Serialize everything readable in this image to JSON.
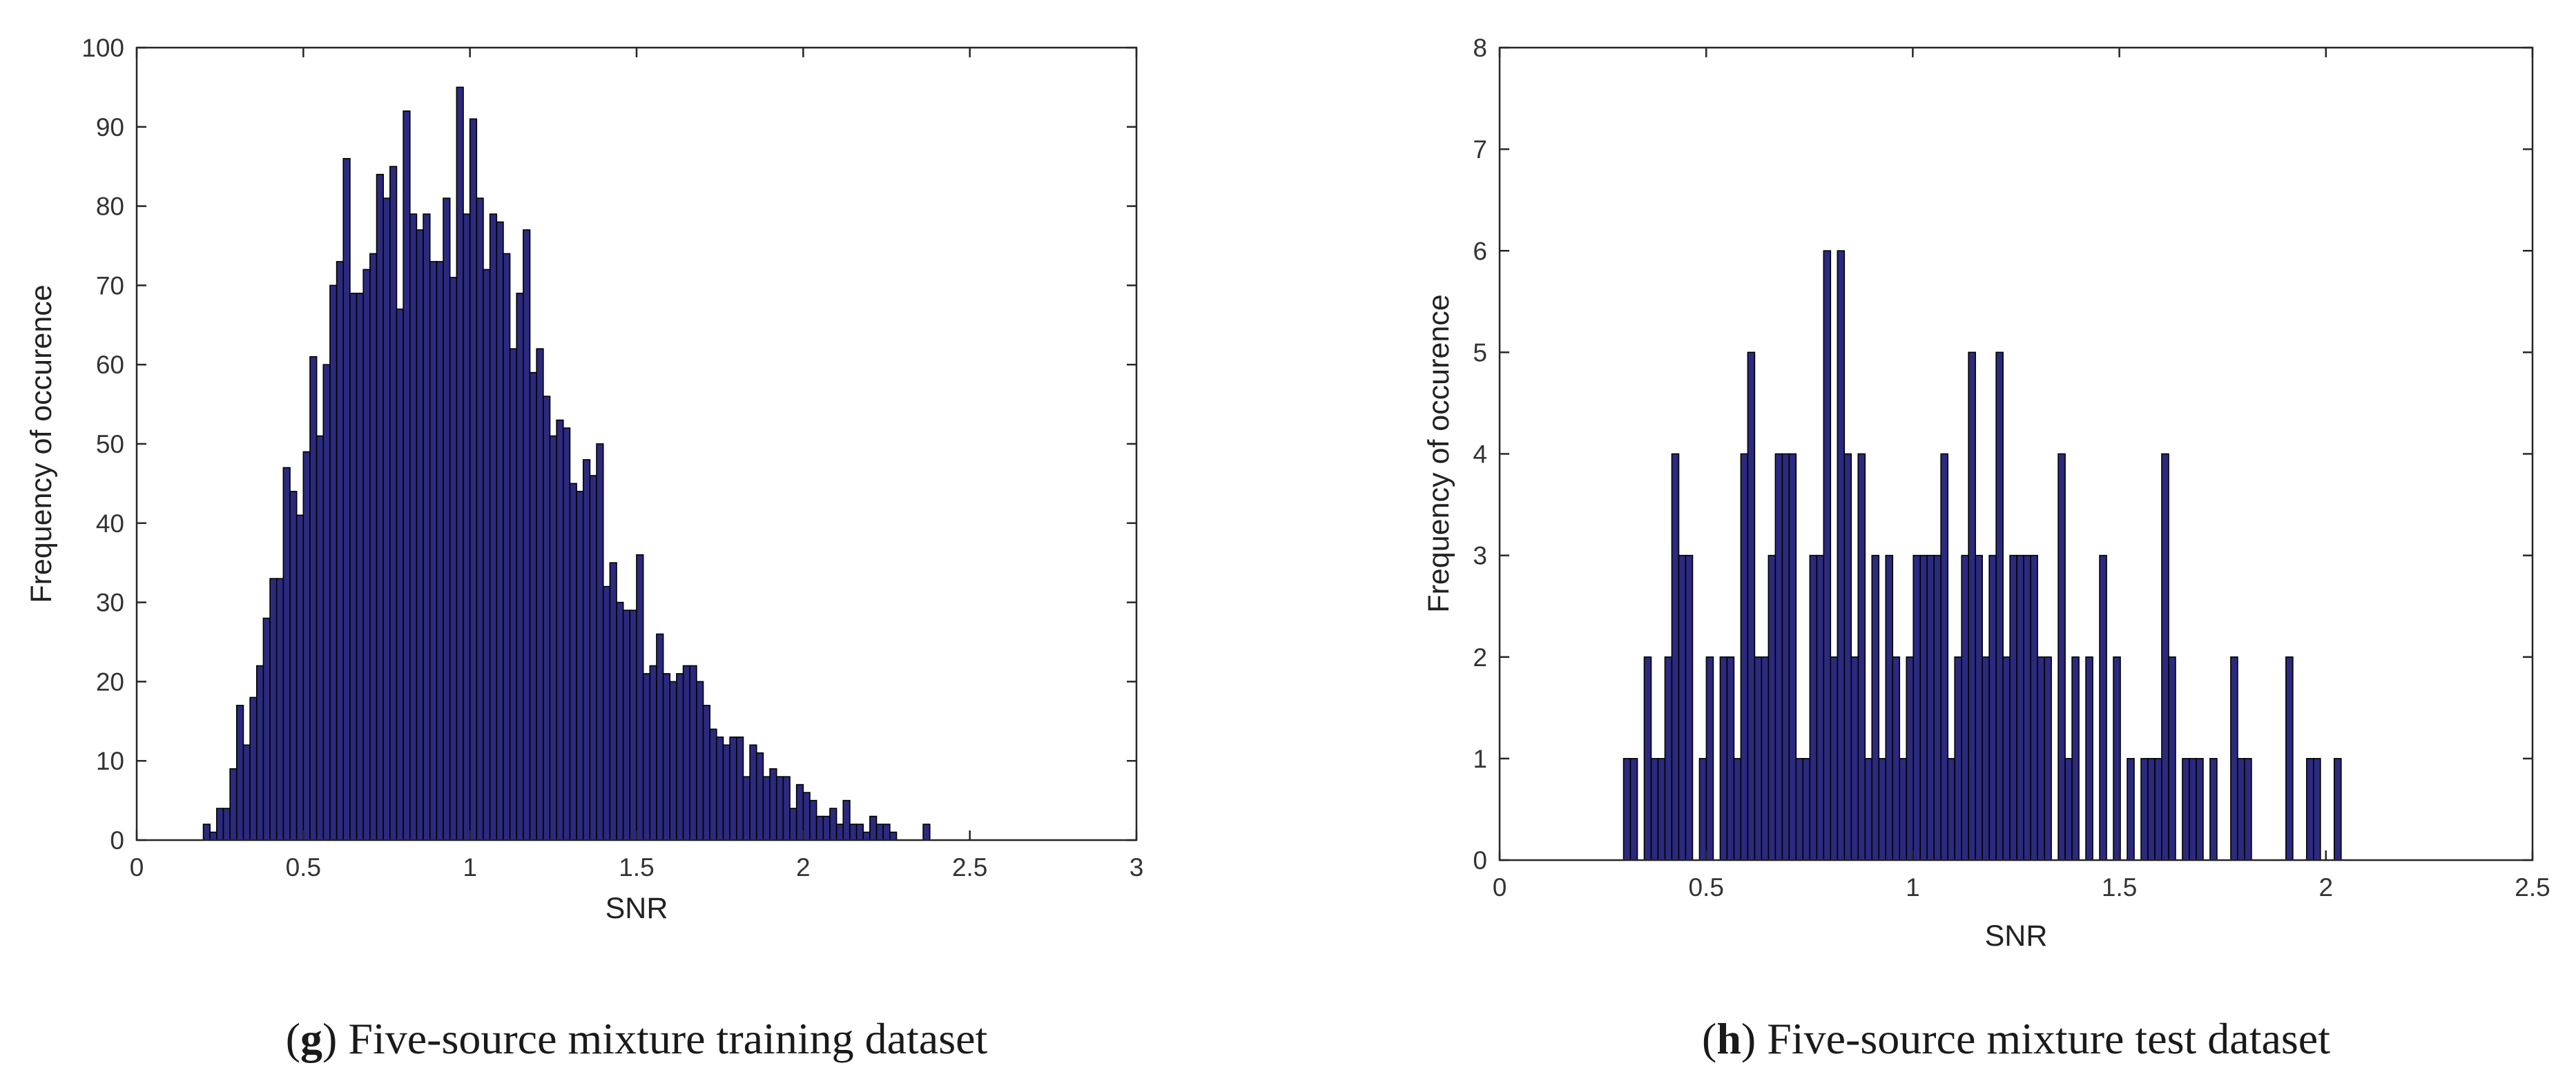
{
  "chart_data": [
    {
      "type": "bar",
      "subtype": "histogram",
      "caption_letter": "g",
      "caption_text": "Five-source mixture training dataset",
      "caption_open": "(",
      "caption_close": ")",
      "xlabel": "SNR",
      "ylabel": "Frequency of occurence",
      "xlim": [
        0,
        3
      ],
      "ylim": [
        0,
        100
      ],
      "xticks": [
        0,
        0.5,
        1,
        1.5,
        2,
        2.5,
        3
      ],
      "xtick_labels": [
        "0",
        "0.5",
        "1",
        "1.5",
        "2",
        "2.5",
        "3"
      ],
      "yticks": [
        0,
        10,
        20,
        30,
        40,
        50,
        60,
        70,
        80,
        90,
        100
      ],
      "ytick_labels": [
        "0",
        "10",
        "20",
        "30",
        "40",
        "50",
        "60",
        "70",
        "80",
        "90",
        "100"
      ],
      "bin_start": 0.2,
      "bin_width": 0.02,
      "bar_color": "#2b2a7e",
      "edge_color": "#000000",
      "values": [
        2,
        1,
        4,
        4,
        9,
        17,
        12,
        18,
        22,
        28,
        33,
        33,
        47,
        44,
        41,
        49,
        61,
        51,
        60,
        70,
        73,
        86,
        69,
        69,
        72,
        74,
        84,
        81,
        85,
        67,
        92,
        79,
        77,
        79,
        73,
        73,
        81,
        71,
        95,
        79,
        91,
        81,
        72,
        79,
        78,
        74,
        62,
        69,
        77,
        59,
        62,
        56,
        51,
        53,
        52,
        45,
        44,
        48,
        46,
        50,
        32,
        35,
        30,
        29,
        29,
        36,
        21,
        22,
        26,
        21,
        20,
        21,
        22,
        22,
        20,
        17,
        14,
        13,
        12,
        13,
        13,
        8,
        12,
        11,
        8,
        9,
        8,
        8,
        4,
        7,
        6,
        5,
        3,
        3,
        4,
        2,
        5,
        2,
        2,
        1,
        3,
        2,
        2,
        1,
        0,
        0,
        0,
        0,
        2
      ]
    },
    {
      "type": "bar",
      "subtype": "histogram",
      "caption_letter": "h",
      "caption_text": "Five-source mixture test dataset",
      "caption_open": "(",
      "caption_close": ")",
      "xlabel": "SNR",
      "ylabel": "Frequency of occurence",
      "xlim": [
        0,
        2.5
      ],
      "ylim": [
        0,
        8
      ],
      "xticks": [
        0,
        0.5,
        1,
        1.5,
        2,
        2.5
      ],
      "xtick_labels": [
        "0",
        "0.5",
        "1",
        "1.5",
        "2",
        "2.5"
      ],
      "yticks": [
        0,
        1,
        2,
        3,
        4,
        5,
        6,
        7,
        8
      ],
      "ytick_labels": [
        "0",
        "1",
        "2",
        "3",
        "4",
        "5",
        "6",
        "7",
        "8"
      ],
      "bin_start": 0.3,
      "bin_width": 0.0167,
      "bar_color": "#2b2a7e",
      "edge_color": "#000000",
      "values": [
        1,
        1,
        0,
        2,
        1,
        1,
        2,
        4,
        3,
        3,
        0,
        1,
        2,
        0,
        2,
        2,
        1,
        4,
        5,
        2,
        2,
        3,
        4,
        4,
        4,
        1,
        1,
        3,
        3,
        6,
        2,
        6,
        4,
        2,
        4,
        1,
        3,
        1,
        3,
        2,
        1,
        2,
        3,
        3,
        3,
        3,
        4,
        1,
        2,
        3,
        5,
        3,
        2,
        3,
        5,
        2,
        3,
        3,
        3,
        3,
        2,
        2,
        0,
        4,
        1,
        2,
        0,
        2,
        0,
        3,
        0,
        2,
        0,
        1,
        0,
        1,
        1,
        1,
        4,
        2,
        0,
        1,
        1,
        1,
        0,
        1,
        0,
        0,
        2,
        1,
        1,
        0,
        0,
        0,
        0,
        0,
        2,
        0,
        0,
        1,
        1,
        0,
        0,
        1,
        0
      ]
    }
  ]
}
